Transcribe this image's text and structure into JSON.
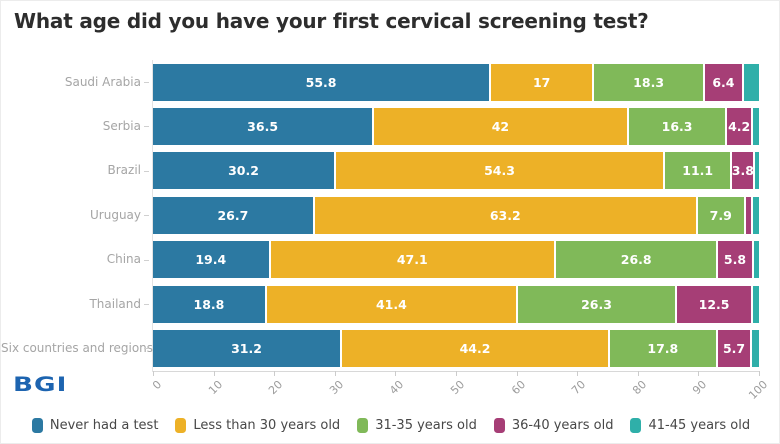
{
  "logo": {
    "text": "BGI"
  },
  "chart_data": {
    "type": "bar",
    "orientation": "horizontal",
    "stacked": true,
    "title": "What age did you have your first cervical screening test?",
    "xlabel": "",
    "ylabel": "",
    "xlim": [
      0,
      100
    ],
    "x_ticks": [
      0,
      10,
      20,
      30,
      40,
      50,
      60,
      70,
      80,
      90,
      100
    ],
    "grid": false,
    "legend_position": "bottom",
    "categories": [
      "Saudi Arabia",
      "Serbia",
      "Brazil",
      "Uruguay",
      "China",
      "Thailand",
      "Six countries and regions"
    ],
    "series": [
      {
        "name": "Never had a test",
        "color": "#2c79a2",
        "values": [
          55.8,
          36.5,
          30.2,
          26.7,
          19.4,
          18.8,
          31.2
        ]
      },
      {
        "name": "Less than 30 years old",
        "color": "#edb127",
        "values": [
          17,
          42,
          54.3,
          63.2,
          47.1,
          41.4,
          44.2
        ]
      },
      {
        "name": "31-35 years old",
        "color": "#80b959",
        "values": [
          18.3,
          16.3,
          11.1,
          7.9,
          26.8,
          26.3,
          17.8
        ]
      },
      {
        "name": "36-40 years old",
        "color": "#a63e76",
        "values": [
          6.4,
          4.2,
          3.8,
          1.2,
          5.8,
          12.5,
          5.7
        ]
      },
      {
        "name": "41-45 years old",
        "color": "#2fafa9",
        "values": [
          2.5,
          1.0,
          0.6,
          1.0,
          0.9,
          1.0,
          1.1
        ]
      }
    ],
    "bar_labels": [
      [
        "55.8",
        "17",
        "18.3",
        "6.4",
        ""
      ],
      [
        "36.5",
        "42",
        "16.3",
        "4.2",
        ""
      ],
      [
        "30.2",
        "54.3",
        "11.1",
        "3.8",
        ""
      ],
      [
        "26.7",
        "63.2",
        "7.9",
        "",
        ""
      ],
      [
        "19.4",
        "47.1",
        "26.8",
        "5.8",
        ""
      ],
      [
        "18.8",
        "41.4",
        "26.3",
        "12.5",
        ""
      ],
      [
        "31.2",
        "44.2",
        "17.8",
        "5.7",
        ""
      ]
    ]
  }
}
